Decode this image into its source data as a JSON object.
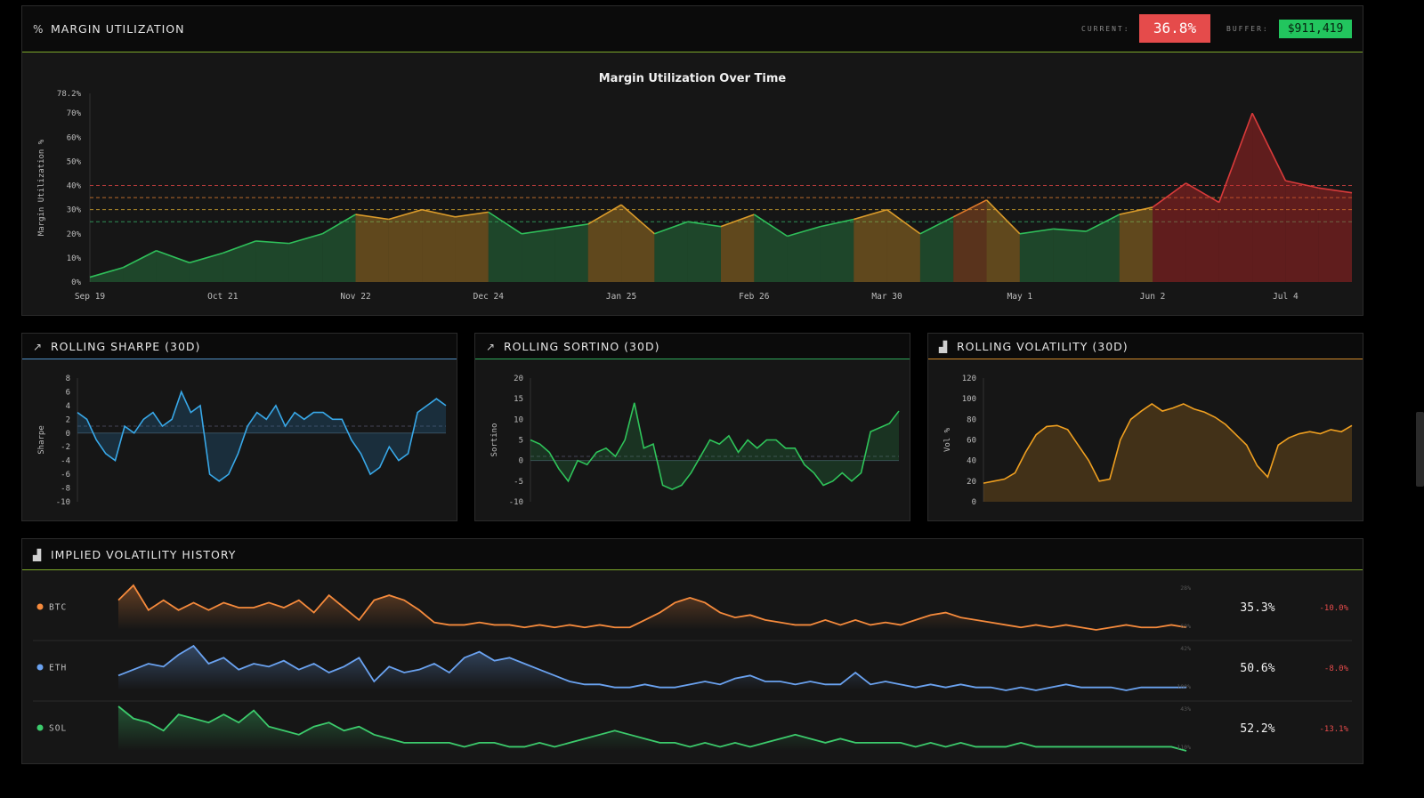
{
  "margin": {
    "title": "MARGIN UTILIZATION",
    "current_label": "CURRENT:",
    "current_value": "36.8%",
    "buffer_label": "BUFFER:",
    "buffer_value": "$911,419",
    "colors": {
      "current_bg": "#e54b4b",
      "buffer_bg": "#22c55e",
      "accent": "#84cc16"
    }
  },
  "chart_data": [
    {
      "type": "area",
      "title": "Margin Utilization Over Time",
      "xlabel": "",
      "ylabel": "Margin Utilization %",
      "ylim": [
        0,
        78.2
      ],
      "y_ticks": [
        "0%",
        "10%",
        "20%",
        "30%",
        "40%",
        "50%",
        "60%",
        "70%",
        "78.2%"
      ],
      "x_ticks": [
        "Sep 19",
        "Oct 21",
        "Nov 22",
        "Dec 24",
        "Jan 25",
        "Feb 26",
        "Mar 30",
        "May 1",
        "Jun 2",
        "Jul 4"
      ],
      "threshold_lines": [
        25,
        30,
        35,
        40
      ],
      "x": [
        "Sep 19",
        "Sep 27",
        "Oct 5",
        "Oct 13",
        "Oct 21",
        "Oct 29",
        "Nov 6",
        "Nov 14",
        "Nov 22",
        "Nov 30",
        "Dec 8",
        "Dec 16",
        "Dec 24",
        "Jan 1",
        "Jan 9",
        "Jan 17",
        "Jan 25",
        "Feb 2",
        "Feb 10",
        "Feb 18",
        "Feb 26",
        "Mar 6",
        "Mar 14",
        "Mar 22",
        "Mar 30",
        "Apr 7",
        "Apr 15",
        "Apr 23",
        "May 1",
        "May 9",
        "May 17",
        "May 25",
        "Jun 2",
        "Jun 10",
        "Jun 18",
        "Jun 26",
        "Jul 4",
        "Jul 12",
        "Jul 20"
      ],
      "values": [
        2,
        6,
        13,
        8,
        12,
        17,
        16,
        20,
        28,
        26,
        30,
        27,
        29,
        20,
        22,
        24,
        32,
        20,
        25,
        23,
        28,
        19,
        23,
        26,
        30,
        20,
        27,
        34,
        20,
        22,
        21,
        28,
        31,
        41,
        33,
        70,
        42,
        39,
        37
      ],
      "grid": false
    },
    {
      "type": "line",
      "title": "ROLLING SHARPE (30D)",
      "ylabel": "Sharpe",
      "ylim": [
        -10,
        8
      ],
      "y_ticks": [
        "8",
        "6",
        "4",
        "2",
        "0",
        "-2",
        "-4",
        "-6",
        "-8",
        "-10"
      ],
      "values": [
        3,
        2,
        -1,
        -3,
        -4,
        1,
        0,
        2,
        3,
        1,
        2,
        6,
        3,
        4,
        -6,
        -7,
        -6,
        -3,
        1,
        3,
        2,
        4,
        1,
        3,
        2,
        3,
        3,
        2,
        2,
        -1,
        -3,
        -6,
        -5,
        -2,
        -4,
        -3,
        3,
        4,
        5,
        4
      ],
      "color": "#38a8e8"
    },
    {
      "type": "line",
      "title": "ROLLING SORTINO (30D)",
      "ylabel": "Sortino",
      "ylim": [
        -10,
        20
      ],
      "y_ticks": [
        "20",
        "15",
        "10",
        "5",
        "0",
        "-5",
        "-10"
      ],
      "values": [
        5,
        4,
        2,
        -2,
        -5,
        0,
        -1,
        2,
        3,
        1,
        5,
        14,
        3,
        4,
        -6,
        -7,
        -6,
        -3,
        1,
        5,
        4,
        6,
        2,
        5,
        3,
        5,
        5,
        3,
        3,
        -1,
        -3,
        -6,
        -5,
        -3,
        -5,
        -3,
        7,
        8,
        9,
        12
      ],
      "color": "#2fc45a"
    },
    {
      "type": "area",
      "title": "ROLLING VOLATILITY (30D)",
      "ylabel": "Vol %",
      "ylim": [
        0,
        120
      ],
      "y_ticks": [
        "120",
        "100",
        "80",
        "60",
        "40",
        "20",
        "0"
      ],
      "values": [
        18,
        20,
        22,
        28,
        48,
        65,
        73,
        74,
        70,
        55,
        40,
        20,
        22,
        60,
        80,
        88,
        95,
        88,
        91,
        95,
        90,
        87,
        82,
        75,
        65,
        55,
        35,
        24,
        55,
        62,
        66,
        68,
        66,
        70,
        68,
        74
      ],
      "color": "#f0a020"
    }
  ],
  "iv": {
    "title": "IMPLIED VOLATILITY HISTORY",
    "rows": [
      {
        "name": "BTC",
        "color": "#f58a3c",
        "max_label": "28%",
        "min_label": "60%",
        "value": "35.3%",
        "change": "-10.0%",
        "series": [
          22,
          28,
          18,
          22,
          18,
          21,
          18,
          21,
          19,
          19,
          21,
          19,
          22,
          17,
          24,
          19,
          14,
          22,
          24,
          22,
          18,
          13,
          12,
          12,
          13,
          12,
          12,
          11,
          12,
          11,
          12,
          11,
          12,
          11,
          11,
          14,
          17,
          21,
          23,
          21,
          17,
          15,
          16,
          14,
          13,
          12,
          12,
          14,
          12,
          14,
          12,
          13,
          12,
          14,
          16,
          17,
          15,
          14,
          13,
          12,
          11,
          12,
          11,
          12,
          11,
          10,
          11,
          12,
          11,
          11,
          12,
          11
        ]
      },
      {
        "name": "ETH",
        "color": "#6aa2f0",
        "max_label": "42%",
        "min_label": "100%",
        "value": "50.6%",
        "change": "-8.0%",
        "series": [
          16,
          18,
          20,
          19,
          23,
          26,
          20,
          22,
          18,
          20,
          19,
          21,
          18,
          20,
          17,
          19,
          22,
          14,
          19,
          17,
          18,
          20,
          17,
          22,
          24,
          21,
          22,
          20,
          18,
          16,
          14,
          13,
          13,
          12,
          12,
          13,
          12,
          12,
          13,
          14,
          13,
          15,
          16,
          14,
          14,
          13,
          14,
          13,
          13,
          17,
          13,
          14,
          13,
          12,
          13,
          12,
          13,
          12,
          12,
          11,
          12,
          11,
          12,
          13,
          12,
          12,
          12,
          11,
          12,
          12,
          12,
          12
        ]
      },
      {
        "name": "SOL",
        "color": "#3ccb6c",
        "max_label": "43%",
        "min_label": "110%",
        "value": "52.2%",
        "change": "-13.1%",
        "series": [
          22,
          19,
          18,
          16,
          20,
          19,
          18,
          20,
          18,
          21,
          17,
          16,
          15,
          17,
          18,
          16,
          17,
          15,
          14,
          13,
          13,
          13,
          13,
          12,
          13,
          13,
          12,
          12,
          13,
          12,
          13,
          14,
          15,
          16,
          15,
          14,
          13,
          13,
          12,
          13,
          12,
          13,
          12,
          13,
          14,
          15,
          14,
          13,
          14,
          13,
          13,
          13,
          13,
          12,
          13,
          12,
          13,
          12,
          12,
          12,
          13,
          12,
          12,
          12,
          12,
          12,
          12,
          12,
          12,
          12,
          12,
          11
        ]
      }
    ],
    "change_color": "#e54b4b"
  }
}
